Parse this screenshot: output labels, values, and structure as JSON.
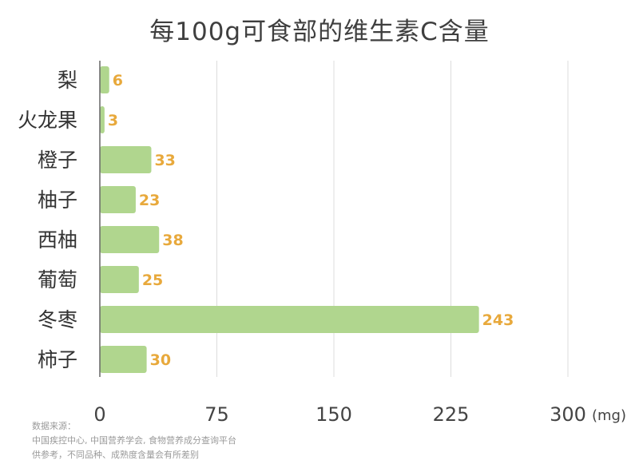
{
  "chart_data": {
    "type": "bar",
    "orientation": "horizontal",
    "title": "每100g可食部的维生素C含量",
    "categories": [
      "梨",
      "火龙果",
      "橙子",
      "柚子",
      "西柚",
      "葡萄",
      "冬枣",
      "柿子"
    ],
    "values": [
      6,
      3,
      33,
      23,
      38,
      25,
      243,
      30
    ],
    "xticks": [
      "0",
      "75",
      "150",
      "225",
      "300"
    ],
    "xlim": [
      0,
      300
    ],
    "unit": "(mg)",
    "grid": true,
    "bar_color": "#b0d68e",
    "label_color": "#e8a93c"
  },
  "source": {
    "line1": "数据来源：",
    "line2": "中国疾控中心, 中国营养学会, 食物营养成分查询平台",
    "line3": "供参考，不同品种、成熟度含量会有所差别"
  }
}
